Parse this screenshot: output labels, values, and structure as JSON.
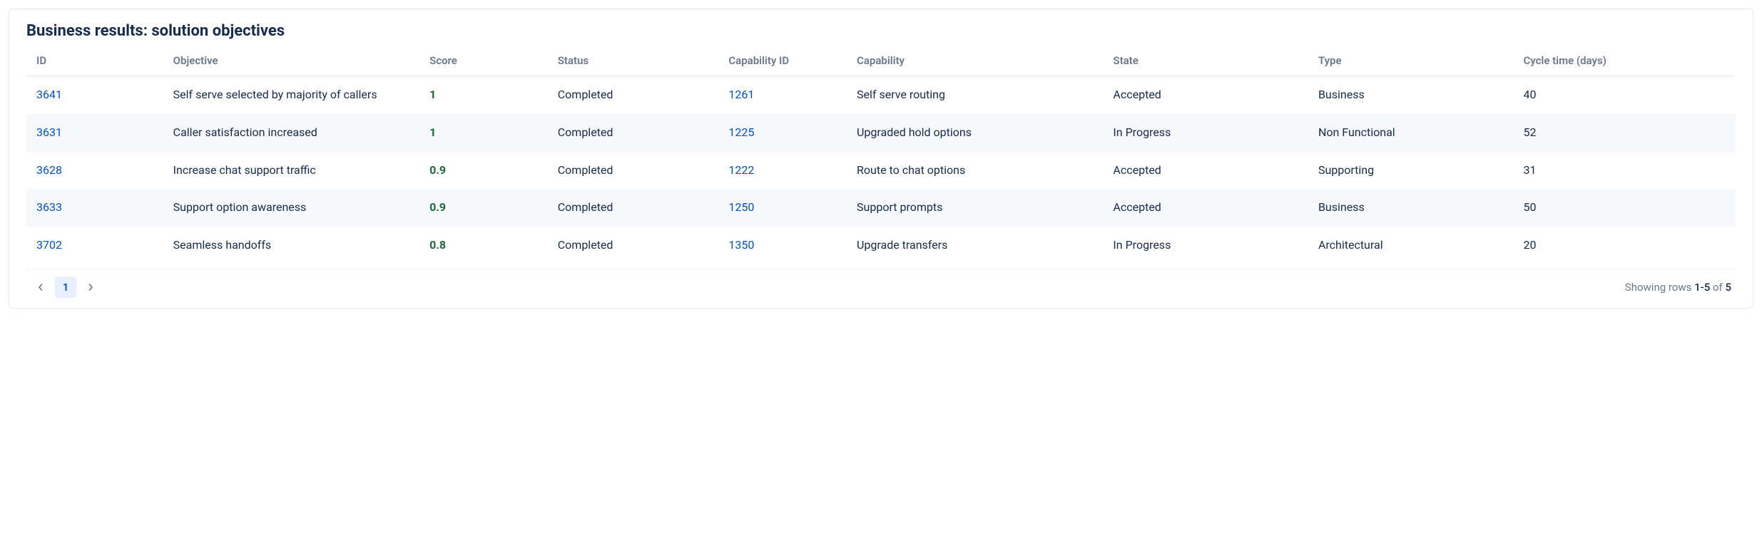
{
  "title": "Business results: solution objectives",
  "columns": {
    "id": "ID",
    "objective": "Objective",
    "score": "Score",
    "status": "Status",
    "capability_id": "Capability ID",
    "capability": "Capability",
    "state": "State",
    "type": "Type",
    "cycle": "Cycle time (days)"
  },
  "column_widths": {
    "id": "8%",
    "objective": "15%",
    "score": "7.5%",
    "status": "10%",
    "capability_id": "7.5%",
    "capability": "15%",
    "state": "12%",
    "type": "12%",
    "cycle": "13%"
  },
  "rows": [
    {
      "id": "3641",
      "objective": "Self serve selected by majority of callers",
      "score": "1",
      "status": "Completed",
      "capability_id": "1261",
      "capability": "Self serve routing",
      "state": "Accepted",
      "type": "Business",
      "cycle": "40"
    },
    {
      "id": "3631",
      "objective": "Caller satisfaction increased",
      "score": "1",
      "status": "Completed",
      "capability_id": "1225",
      "capability": "Upgraded hold options",
      "state": "In Progress",
      "type": "Non Functional",
      "cycle": "52"
    },
    {
      "id": "3628",
      "objective": "Increase chat support traffic",
      "score": "0.9",
      "status": "Completed",
      "capability_id": "1222",
      "capability": "Route to chat options",
      "state": "Accepted",
      "type": "Supporting",
      "cycle": "31"
    },
    {
      "id": "3633",
      "objective": "Support option awareness",
      "score": "0.9",
      "status": "Completed",
      "capability_id": "1250",
      "capability": "Support prompts",
      "state": "Accepted",
      "type": "Business",
      "cycle": "50"
    },
    {
      "id": "3702",
      "objective": "Seamless handoffs",
      "score": "0.8",
      "status": "Completed",
      "capability_id": "1350",
      "capability": "Upgrade transfers",
      "state": "In Progress",
      "type": "Architectural",
      "cycle": "20"
    }
  ],
  "pagination": {
    "current_page": "1",
    "showing_prefix": "Showing rows ",
    "range": "1-5",
    "of_word": " of ",
    "total": "5"
  },
  "colors": {
    "link": "#0052cc",
    "score": "#1d6b3a",
    "text": "#172b4d",
    "muted": "#6b778c",
    "row_alt_bg": "#f6f8fb",
    "page_active_bg": "#e8f0ff",
    "border": "#e5e8ec"
  }
}
